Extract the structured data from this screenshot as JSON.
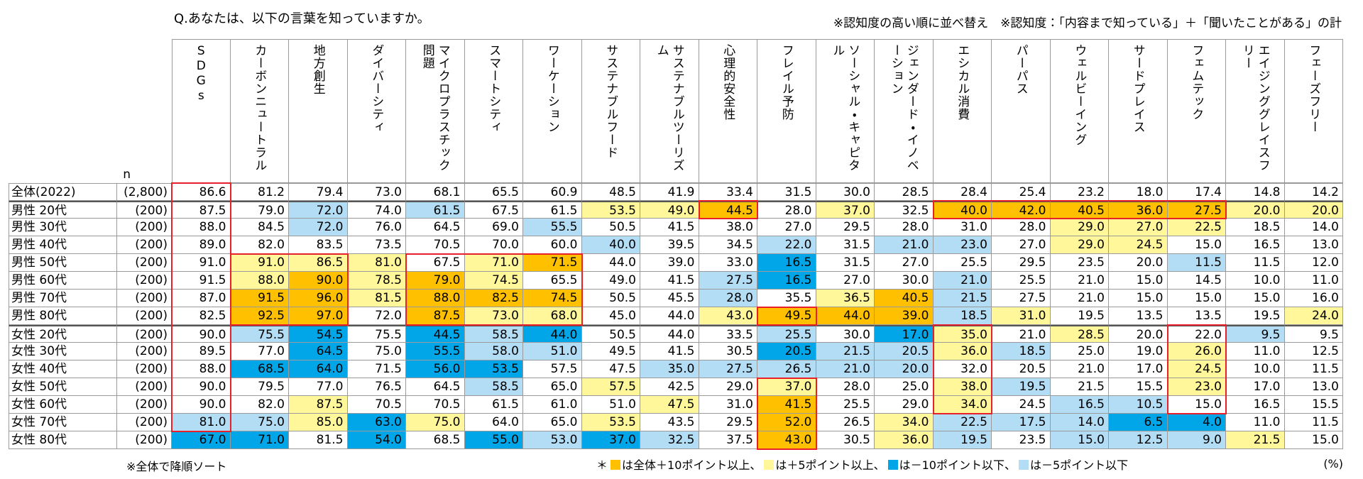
{
  "header": {
    "question": "Q.あなたは、以下の言葉を知っていますか。",
    "note": "※認知度の高い順に並べ替え　※認知度：「内容まで知っている」＋「聞いたことがある」の計"
  },
  "table": {
    "n_header": "n",
    "columns": [
      "SDGs",
      "カーボンニュートラル",
      "地方創生",
      "ダイバーシティ",
      "マイクロプラスチック問題",
      "スマートシティ",
      "ワーケーション",
      "サステナブルフード",
      "サステナブルツーリズム",
      "心理的安全性",
      "フレイル予防",
      "ソーシャル・キャピタル",
      "ジェンダード・イノベーション",
      "エシカル消費",
      "パーパス",
      "ウェルビーイング",
      "サードプレイス",
      "フェムテック",
      "エイジンググレイスフリー",
      "フェーズフリー"
    ],
    "rows": [
      {
        "label": "全体(2022)",
        "n": "(2,800)",
        "values": [
          "86.6",
          "81.2",
          "79.4",
          "73.0",
          "68.1",
          "65.5",
          "60.9",
          "48.5",
          "41.9",
          "33.4",
          "31.5",
          "30.0",
          "28.5",
          "28.4",
          "25.4",
          "23.2",
          "18.0",
          "17.4",
          "14.8",
          "14.2"
        ]
      },
      {
        "label": "男性 20代",
        "n": "(200)",
        "values": [
          "87.5",
          "79.0",
          "72.0",
          "74.0",
          "61.5",
          "67.5",
          "61.5",
          "53.5",
          "49.0",
          "44.5",
          "28.0",
          "37.0",
          "32.5",
          "40.0",
          "42.0",
          "40.5",
          "36.0",
          "27.5",
          "20.0",
          "20.0"
        ]
      },
      {
        "label": "男性 30代",
        "n": "(200)",
        "values": [
          "88.0",
          "84.5",
          "72.0",
          "76.0",
          "64.5",
          "69.0",
          "55.5",
          "50.5",
          "41.5",
          "38.0",
          "27.0",
          "29.5",
          "28.0",
          "31.0",
          "28.0",
          "29.0",
          "27.0",
          "22.5",
          "18.5",
          "14.0"
        ]
      },
      {
        "label": "男性 40代",
        "n": "(200)",
        "values": [
          "89.0",
          "82.0",
          "83.5",
          "73.5",
          "70.5",
          "70.0",
          "60.0",
          "40.0",
          "39.5",
          "34.5",
          "22.0",
          "31.5",
          "21.0",
          "23.0",
          "27.0",
          "29.0",
          "24.5",
          "15.0",
          "16.5",
          "13.0"
        ]
      },
      {
        "label": "男性 50代",
        "n": "(200)",
        "values": [
          "91.0",
          "91.0",
          "86.5",
          "81.0",
          "67.5",
          "71.0",
          "71.5",
          "44.0",
          "39.0",
          "33.0",
          "16.5",
          "31.5",
          "27.0",
          "25.5",
          "29.5",
          "23.5",
          "20.0",
          "11.5",
          "11.5",
          "12.0"
        ]
      },
      {
        "label": "男性 60代",
        "n": "(200)",
        "values": [
          "91.5",
          "88.0",
          "90.0",
          "78.5",
          "79.0",
          "74.5",
          "65.5",
          "49.0",
          "41.5",
          "27.5",
          "16.5",
          "27.0",
          "30.0",
          "21.0",
          "25.5",
          "21.0",
          "15.0",
          "14.5",
          "10.0",
          "11.0"
        ]
      },
      {
        "label": "男性 70代",
        "n": "(200)",
        "values": [
          "87.0",
          "91.5",
          "96.0",
          "81.5",
          "88.0",
          "82.5",
          "74.5",
          "50.5",
          "45.5",
          "28.0",
          "35.5",
          "36.5",
          "40.5",
          "21.5",
          "27.5",
          "21.0",
          "15.0",
          "15.0",
          "15.0",
          "16.0"
        ]
      },
      {
        "label": "男性 80代",
        "n": "(200)",
        "values": [
          "82.5",
          "92.5",
          "97.0",
          "72.0",
          "87.5",
          "73.0",
          "68.0",
          "45.0",
          "44.0",
          "43.0",
          "49.5",
          "44.0",
          "39.0",
          "18.5",
          "31.0",
          "19.5",
          "13.5",
          "13.5",
          "19.5",
          "24.0"
        ]
      },
      {
        "label": "女性 20代",
        "n": "(200)",
        "values": [
          "90.0",
          "75.5",
          "54.5",
          "75.5",
          "44.5",
          "58.5",
          "44.0",
          "50.5",
          "44.0",
          "33.5",
          "25.5",
          "30.0",
          "17.0",
          "35.0",
          "21.0",
          "28.5",
          "20.0",
          "22.0",
          "9.5",
          "9.5"
        ]
      },
      {
        "label": "女性 30代",
        "n": "(200)",
        "values": [
          "89.5",
          "77.0",
          "64.5",
          "75.0",
          "55.5",
          "58.0",
          "51.0",
          "49.5",
          "41.5",
          "30.5",
          "20.5",
          "21.5",
          "20.5",
          "36.0",
          "18.5",
          "25.0",
          "19.0",
          "26.0",
          "11.0",
          "12.5"
        ]
      },
      {
        "label": "女性 40代",
        "n": "(200)",
        "values": [
          "88.0",
          "68.5",
          "64.0",
          "71.5",
          "56.0",
          "53.5",
          "57.5",
          "47.5",
          "35.0",
          "27.5",
          "26.5",
          "21.0",
          "20.0",
          "32.0",
          "20.5",
          "21.0",
          "17.0",
          "24.5",
          "10.0",
          "11.5"
        ]
      },
      {
        "label": "女性 50代",
        "n": "(200)",
        "values": [
          "90.0",
          "79.5",
          "77.0",
          "76.5",
          "64.5",
          "58.5",
          "65.0",
          "57.5",
          "42.5",
          "29.0",
          "37.0",
          "28.0",
          "25.0",
          "38.0",
          "19.5",
          "21.5",
          "15.5",
          "23.0",
          "17.0",
          "13.0"
        ]
      },
      {
        "label": "女性 60代",
        "n": "(200)",
        "values": [
          "90.0",
          "82.0",
          "87.5",
          "70.5",
          "70.5",
          "61.5",
          "61.0",
          "51.0",
          "47.5",
          "31.0",
          "41.5",
          "25.5",
          "29.0",
          "34.0",
          "24.5",
          "16.5",
          "10.5",
          "15.0",
          "16.5",
          "15.5"
        ]
      },
      {
        "label": "女性 70代",
        "n": "(200)",
        "values": [
          "81.0",
          "75.0",
          "85.0",
          "63.0",
          "75.0",
          "64.0",
          "65.0",
          "53.5",
          "43.5",
          "29.5",
          "52.0",
          "26.5",
          "34.0",
          "22.5",
          "17.5",
          "14.0",
          "6.5",
          "4.0",
          "11.0",
          "11.5"
        ]
      },
      {
        "label": "女性 80代",
        "n": "(200)",
        "values": [
          "67.0",
          "71.0",
          "81.5",
          "54.0",
          "68.5",
          "55.0",
          "53.0",
          "37.0",
          "32.5",
          "37.5",
          "43.0",
          "30.5",
          "36.0",
          "19.5",
          "23.5",
          "15.0",
          "12.5",
          "9.0",
          "21.5",
          "15.0"
        ]
      }
    ]
  },
  "footer": {
    "sort_note": "※全体で降順ソート",
    "legend_mark": "＊",
    "legend": [
      "は全体＋10ポイント以上、",
      "は＋5ポイント以上、",
      "は－10ポイント以下、",
      "は－5ポイント以下"
    ],
    "unit": "(%)"
  }
}
